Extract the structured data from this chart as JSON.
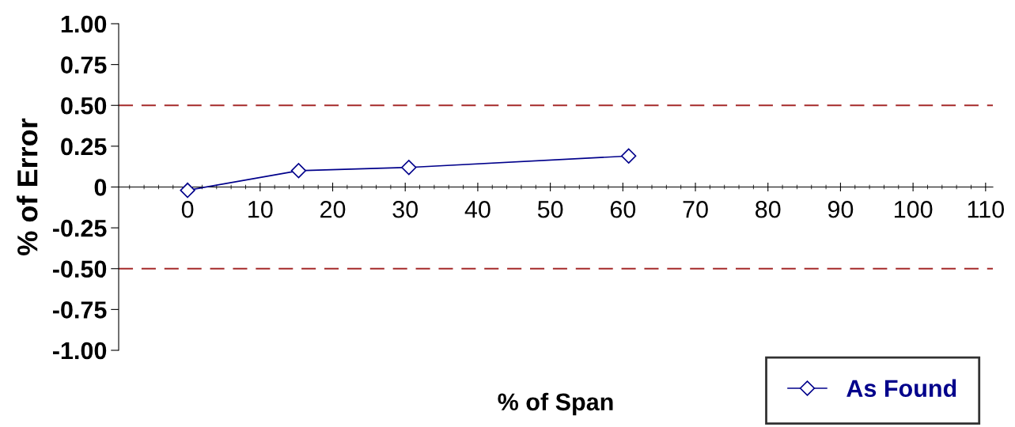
{
  "chart_data": {
    "type": "line",
    "xlabel": "% of Span",
    "ylabel": "% of Error",
    "x": [
      0,
      15.3,
      30.5,
      60.8
    ],
    "series": [
      {
        "name": "As Found",
        "color": "#00008b",
        "values": [
          -0.02,
          0.1,
          0.12,
          0.19
        ]
      }
    ],
    "xlim": [
      -9.5,
      111
    ],
    "xticks": [
      0,
      10,
      20,
      30,
      40,
      50,
      60,
      70,
      80,
      90,
      100,
      110
    ],
    "ylim": [
      -1,
      1
    ],
    "yticks": [
      {
        "value": 1,
        "label": "1.00"
      },
      {
        "value": 0.75,
        "label": "0.75"
      },
      {
        "value": 0.5,
        "label": "0.50"
      },
      {
        "value": 0.25,
        "label": "0.25"
      },
      0,
      {
        "value": -0.25,
        "label": "-0.25"
      },
      {
        "value": -0.5,
        "label": "-0.50"
      },
      {
        "value": -0.75,
        "label": "-0.75"
      },
      {
        "value": -1,
        "label": "-1.00"
      }
    ],
    "ref_lines": [
      {
        "axis": "y",
        "value": 0.5,
        "color": "#a52a2a",
        "line_style": "dashed"
      },
      {
        "axis": "y",
        "value": -0.5,
        "color": "#a52a2a",
        "line_style": "dashed"
      }
    ],
    "marker": "diamond",
    "line_style": "solid",
    "grid": false,
    "legend": "bottom right"
  }
}
